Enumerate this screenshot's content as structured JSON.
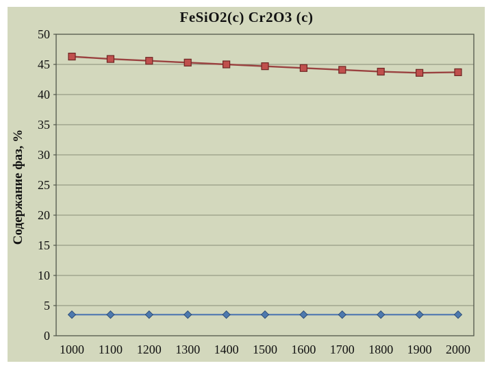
{
  "chart_data": {
    "type": "line",
    "title": "FeSiO2(c) Cr2O3 (c)",
    "xlabel": "",
    "ylabel": "Содержание фаз, %",
    "x": [
      1000,
      1100,
      1200,
      1300,
      1400,
      1500,
      1600,
      1700,
      1800,
      1900,
      2000
    ],
    "series": [
      {
        "name": "FeSiO2(c)",
        "marker": "square",
        "line_color": "#9a4240",
        "marker_fill": "#c0504d",
        "marker_stroke": "#6e2523",
        "values": [
          46.3,
          45.9,
          45.6,
          45.3,
          45.0,
          44.7,
          44.4,
          44.1,
          43.8,
          43.6,
          43.7
        ]
      },
      {
        "name": "Cr2O3 (c)",
        "marker": "diamond",
        "line_color": "#5b80b2",
        "marker_fill": "#4d79ae",
        "marker_stroke": "#2d4d77",
        "values": [
          3.5,
          3.5,
          3.5,
          3.5,
          3.5,
          3.5,
          3.5,
          3.5,
          3.5,
          3.5,
          3.5
        ]
      }
    ],
    "ylim": [
      0,
      50
    ],
    "ytick_step": 5,
    "xtick_step": 100,
    "grid": "horizontal",
    "legend": "none",
    "colors": {
      "plot_background": "#d3d8bd",
      "gridline": "#878d76",
      "plot_border": "#51564a",
      "text": "#111111",
      "page_background": "#ffffff"
    }
  }
}
